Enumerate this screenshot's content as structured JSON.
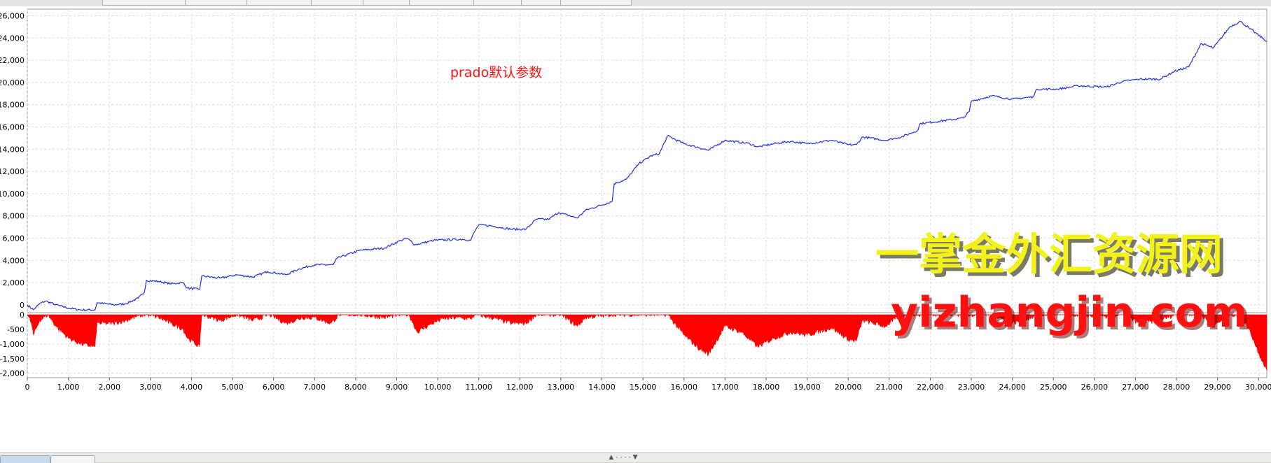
{
  "chart_data": [
    {
      "panel": "equity",
      "type": "line",
      "annotation": "prado默认参数",
      "xlim": [
        0,
        30200
      ],
      "ylim": [
        -700,
        26600
      ],
      "yticks": [
        0,
        2000,
        4000,
        6000,
        8000,
        10000,
        12000,
        14000,
        16000,
        18000,
        20000,
        22000,
        24000,
        26000
      ],
      "yticks_text": [
        "0",
        "2,000",
        "4,000",
        "6,000",
        "8,000",
        "10,000",
        "12,000",
        "14,000",
        "16,000",
        "18,000",
        "20,000",
        "22,000",
        "24,000",
        "26,000"
      ],
      "grid": true,
      "series": [
        {
          "color": "#1f2ee0",
          "points": [
            [
              0,
              0
            ],
            [
              150,
              -450
            ],
            [
              300,
              100
            ],
            [
              450,
              350
            ],
            [
              700,
              0
            ],
            [
              1000,
              -300
            ],
            [
              1300,
              -450
            ],
            [
              1650,
              -450
            ],
            [
              1700,
              200
            ],
            [
              2100,
              0
            ],
            [
              2400,
              100
            ],
            [
              2700,
              600
            ],
            [
              2850,
              1100
            ],
            [
              2900,
              2200
            ],
            [
              3200,
              2100
            ],
            [
              3500,
              1900
            ],
            [
              3800,
              2000
            ],
            [
              3900,
              1500
            ],
            [
              4200,
              1400
            ],
            [
              4250,
              2600
            ],
            [
              4700,
              2400
            ],
            [
              5100,
              2700
            ],
            [
              5500,
              2500
            ],
            [
              5850,
              3000
            ],
            [
              6300,
              2700
            ],
            [
              6600,
              3200
            ],
            [
              7000,
              3600
            ],
            [
              7450,
              3600
            ],
            [
              7550,
              4200
            ],
            [
              8100,
              4900
            ],
            [
              8700,
              5100
            ],
            [
              9100,
              5800
            ],
            [
              9250,
              6000
            ],
            [
              9450,
              5400
            ],
            [
              9900,
              5800
            ],
            [
              10600,
              5900
            ],
            [
              10800,
              5800
            ],
            [
              10900,
              6600
            ],
            [
              11000,
              7200
            ],
            [
              11300,
              7100
            ],
            [
              11800,
              6800
            ],
            [
              12150,
              6800
            ],
            [
              12400,
              7700
            ],
            [
              12700,
              7700
            ],
            [
              12950,
              8300
            ],
            [
              13400,
              7800
            ],
            [
              13600,
              8500
            ],
            [
              14250,
              9300
            ],
            [
              14300,
              10900
            ],
            [
              14600,
              11300
            ],
            [
              14900,
              12700
            ],
            [
              15200,
              13400
            ],
            [
              15400,
              13600
            ],
            [
              15600,
              15200
            ],
            [
              16000,
              14500
            ],
            [
              16600,
              13900
            ],
            [
              17000,
              14800
            ],
            [
              17600,
              14500
            ],
            [
              17800,
              14200
            ],
            [
              18200,
              14500
            ],
            [
              18600,
              14700
            ],
            [
              19000,
              14500
            ],
            [
              19600,
              14800
            ],
            [
              20000,
              14400
            ],
            [
              20200,
              14400
            ],
            [
              20350,
              15100
            ],
            [
              20900,
              14800
            ],
            [
              21300,
              15100
            ],
            [
              21700,
              15700
            ],
            [
              21750,
              16300
            ],
            [
              22200,
              16500
            ],
            [
              22800,
              16800
            ],
            [
              22950,
              17400
            ],
            [
              23000,
              18300
            ],
            [
              23500,
              18800
            ],
            [
              24000,
              18500
            ],
            [
              24500,
              18700
            ],
            [
              24600,
              19400
            ],
            [
              25100,
              19400
            ],
            [
              25600,
              19700
            ],
            [
              26300,
              19600
            ],
            [
              26700,
              20100
            ],
            [
              27100,
              20300
            ],
            [
              27600,
              20300
            ],
            [
              27950,
              21000
            ],
            [
              28300,
              21400
            ],
            [
              28600,
              23500
            ],
            [
              28900,
              23100
            ],
            [
              29300,
              25000
            ],
            [
              29550,
              25500
            ],
            [
              29800,
              24800
            ],
            [
              30200,
              23700
            ]
          ]
        }
      ]
    },
    {
      "panel": "drawdown",
      "type": "area",
      "xlim": [
        0,
        30200
      ],
      "ylim": [
        -2150,
        0
      ],
      "yticks": [
        0,
        -500,
        -1000,
        -1500,
        -2000
      ],
      "yticks_text": [
        "0",
        "-500",
        "-1,000",
        "-1,500",
        "-2,000"
      ],
      "xticks": [
        0,
        1000,
        2000,
        3000,
        4000,
        5000,
        6000,
        7000,
        8000,
        9000,
        10000,
        11000,
        12000,
        13000,
        14000,
        15000,
        16000,
        17000,
        18000,
        19000,
        20000,
        21000,
        22000,
        23000,
        24000,
        25000,
        26000,
        27000,
        28000,
        29000,
        30000
      ],
      "xticks_text": [
        "0",
        "1,000",
        "2,000",
        "3,000",
        "4,000",
        "5,000",
        "6,000",
        "7,000",
        "8,000",
        "9,000",
        "10,000",
        "11,000",
        "12,000",
        "13,000",
        "14,000",
        "15,000",
        "16,000",
        "17,000",
        "18,000",
        "19,000",
        "20,000",
        "21,000",
        "22,000",
        "23,000",
        "24,000",
        "25,000",
        "26,000",
        "27,000",
        "28,000",
        "29,000",
        "30,000"
      ],
      "grid": true,
      "series": [
        {
          "color": "#ff0000",
          "points": [
            [
              0,
              0
            ],
            [
              100,
              -300
            ],
            [
              150,
              -700
            ],
            [
              300,
              -200
            ],
            [
              500,
              0
            ],
            [
              700,
              -400
            ],
            [
              1000,
              -800
            ],
            [
              1300,
              -1000
            ],
            [
              1650,
              -1100
            ],
            [
              1700,
              -300
            ],
            [
              2100,
              -300
            ],
            [
              2400,
              -200
            ],
            [
              2700,
              -50
            ],
            [
              2900,
              0
            ],
            [
              3200,
              -100
            ],
            [
              3500,
              -300
            ],
            [
              3800,
              -500
            ],
            [
              3900,
              -800
            ],
            [
              4150,
              -1050
            ],
            [
              4200,
              -1100
            ],
            [
              4250,
              0
            ],
            [
              4700,
              -200
            ],
            [
              5100,
              0
            ],
            [
              5500,
              -200
            ],
            [
              5900,
              0
            ],
            [
              6300,
              -300
            ],
            [
              6700,
              -100
            ],
            [
              7000,
              -100
            ],
            [
              7400,
              -300
            ],
            [
              7600,
              0
            ],
            [
              8100,
              0
            ],
            [
              8700,
              -100
            ],
            [
              9100,
              0
            ],
            [
              9300,
              0
            ],
            [
              9500,
              -600
            ],
            [
              9800,
              -350
            ],
            [
              10100,
              -150
            ],
            [
              10500,
              -100
            ],
            [
              10800,
              -150
            ],
            [
              10900,
              0
            ],
            [
              11300,
              -100
            ],
            [
              11800,
              -300
            ],
            [
              12150,
              -300
            ],
            [
              12400,
              0
            ],
            [
              12700,
              0
            ],
            [
              13000,
              0
            ],
            [
              13400,
              -400
            ],
            [
              13600,
              -100
            ],
            [
              14250,
              0
            ],
            [
              15000,
              0
            ],
            [
              15600,
              0
            ],
            [
              16000,
              -700
            ],
            [
              16400,
              -1200
            ],
            [
              16600,
              -1350
            ],
            [
              17000,
              -400
            ],
            [
              17400,
              -600
            ],
            [
              17800,
              -1100
            ],
            [
              18200,
              -800
            ],
            [
              18600,
              -600
            ],
            [
              19000,
              -700
            ],
            [
              19600,
              -450
            ],
            [
              20000,
              -850
            ],
            [
              20200,
              -900
            ],
            [
              20350,
              -200
            ],
            [
              20900,
              -400
            ],
            [
              21300,
              0
            ],
            [
              21700,
              0
            ],
            [
              22200,
              0
            ],
            [
              22800,
              0
            ],
            [
              23000,
              0
            ],
            [
              23500,
              0
            ],
            [
              24000,
              -300
            ],
            [
              24500,
              -100
            ],
            [
              24600,
              0
            ],
            [
              25100,
              0
            ],
            [
              25600,
              0
            ],
            [
              26300,
              -100
            ],
            [
              26700,
              0
            ],
            [
              27100,
              -300
            ],
            [
              27600,
              -200
            ],
            [
              27950,
              0
            ],
            [
              28300,
              0
            ],
            [
              28600,
              0
            ],
            [
              28900,
              -400
            ],
            [
              29300,
              0
            ],
            [
              29550,
              0
            ],
            [
              29800,
              -600
            ],
            [
              30000,
              -1300
            ],
            [
              30200,
              -1900
            ]
          ]
        }
      ]
    }
  ],
  "watermark": {
    "line1": "一掌金外汇资源网",
    "line2": "yizhangjin.com",
    "color_line1": "#f2f21a",
    "color_line2": "#ff1010"
  },
  "status": {
    "splitter": "▲ - - - - ▼"
  }
}
